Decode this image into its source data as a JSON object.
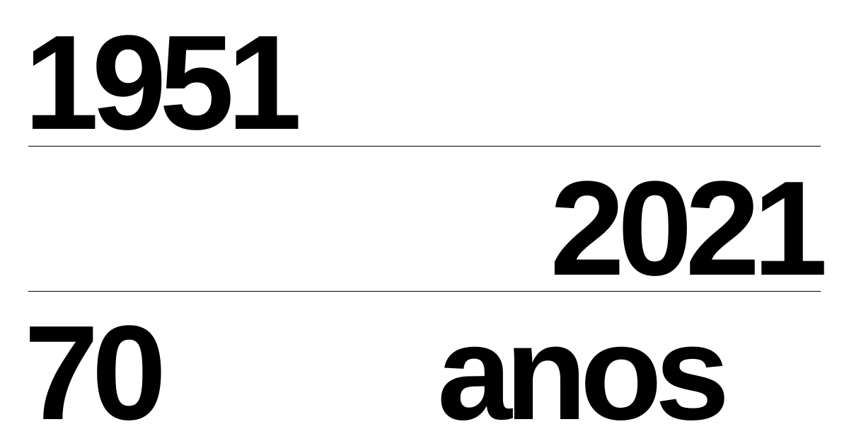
{
  "banner": {
    "year_start": "1951",
    "year_end": "2021",
    "count": "70",
    "unit": "anos"
  },
  "colors": {
    "background": "#ffffff",
    "text": "#000000",
    "rule": "#000000"
  }
}
